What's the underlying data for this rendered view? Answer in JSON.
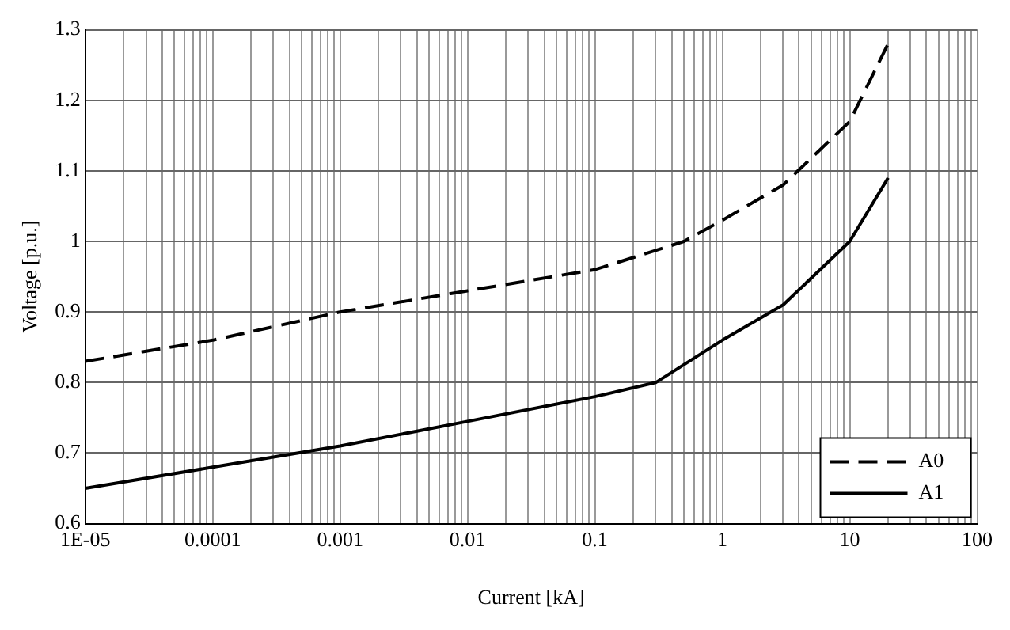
{
  "chart_data": {
    "type": "line",
    "xlabel": "Current [kA]",
    "ylabel": "Voltage [p.u.]",
    "log": "x",
    "grid": true,
    "legend": "bottom right",
    "marker": "none",
    "xlim": [
      1e-05,
      100
    ],
    "ylim": [
      0.6,
      1.3
    ],
    "xticks": [
      {
        "value": 1e-05,
        "label": "1E-05"
      },
      {
        "value": 2e-05,
        "label": null
      },
      {
        "value": 3e-05,
        "label": null
      },
      {
        "value": 4e-05,
        "label": null
      },
      {
        "value": 5e-05,
        "label": null
      },
      {
        "value": 6e-05,
        "label": null
      },
      {
        "value": 7e-05,
        "label": null
      },
      {
        "value": 8e-05,
        "label": null
      },
      {
        "value": 9e-05,
        "label": null
      },
      {
        "value": 0.0001,
        "label": "0.0001"
      },
      {
        "value": 0.0002,
        "label": null
      },
      {
        "value": 0.0003,
        "label": null
      },
      {
        "value": 0.0004,
        "label": null
      },
      {
        "value": 0.0005,
        "label": null
      },
      {
        "value": 0.0006,
        "label": null
      },
      {
        "value": 0.0007,
        "label": null
      },
      {
        "value": 0.0008,
        "label": null
      },
      {
        "value": 0.0009,
        "label": null
      },
      {
        "value": 0.001,
        "label": "0.001"
      },
      {
        "value": 0.002,
        "label": null
      },
      {
        "value": 0.003,
        "label": null
      },
      {
        "value": 0.004,
        "label": null
      },
      {
        "value": 0.005,
        "label": null
      },
      {
        "value": 0.006,
        "label": null
      },
      {
        "value": 0.007,
        "label": null
      },
      {
        "value": 0.008,
        "label": null
      },
      {
        "value": 0.009,
        "label": null
      },
      {
        "value": 0.01,
        "label": "0.01"
      },
      {
        "value": 0.02,
        "label": null
      },
      {
        "value": 0.03,
        "label": null
      },
      {
        "value": 0.04,
        "label": null
      },
      {
        "value": 0.05,
        "label": null
      },
      {
        "value": 0.06,
        "label": null
      },
      {
        "value": 0.07,
        "label": null
      },
      {
        "value": 0.08,
        "label": null
      },
      {
        "value": 0.09,
        "label": null
      },
      {
        "value": 0.1,
        "label": "0.1"
      },
      {
        "value": 0.2,
        "label": null
      },
      {
        "value": 0.3,
        "label": null
      },
      {
        "value": 0.4,
        "label": null
      },
      {
        "value": 0.5,
        "label": null
      },
      {
        "value": 0.6,
        "label": null
      },
      {
        "value": 0.7,
        "label": null
      },
      {
        "value": 0.8,
        "label": null
      },
      {
        "value": 0.9,
        "label": null
      },
      {
        "value": 1,
        "label": "1"
      },
      {
        "value": 2,
        "label": null
      },
      {
        "value": 3,
        "label": null
      },
      {
        "value": 4,
        "label": null
      },
      {
        "value": 5,
        "label": null
      },
      {
        "value": 6,
        "label": null
      },
      {
        "value": 7,
        "label": null
      },
      {
        "value": 8,
        "label": null
      },
      {
        "value": 9,
        "label": null
      },
      {
        "value": 10,
        "label": "10"
      },
      {
        "value": 20,
        "label": null
      },
      {
        "value": 30,
        "label": null
      },
      {
        "value": 40,
        "label": null
      },
      {
        "value": 50,
        "label": null
      },
      {
        "value": 60,
        "label": null
      },
      {
        "value": 70,
        "label": null
      },
      {
        "value": 80,
        "label": null
      },
      {
        "value": 90,
        "label": null
      },
      {
        "value": 100,
        "label": "100"
      }
    ],
    "yticks": [
      0.6,
      0.7,
      0.8,
      0.9,
      1,
      1.1,
      1.2,
      1.3
    ],
    "series": [
      {
        "name": "A0",
        "color": "#000000",
        "line_style": "dashed",
        "x": [
          1e-05,
          0.0001,
          0.001,
          0.01,
          0.1,
          0.5,
          1,
          3,
          10,
          20
        ],
        "values": [
          0.83,
          0.86,
          0.9,
          0.93,
          0.96,
          1.0,
          1.03,
          1.08,
          1.17,
          1.28
        ]
      },
      {
        "name": "A1",
        "color": "#000000",
        "line_style": "solid",
        "x": [
          1e-05,
          0.0001,
          0.001,
          0.01,
          0.1,
          0.3,
          1,
          3,
          10,
          20
        ],
        "values": [
          0.65,
          0.68,
          0.71,
          0.745,
          0.78,
          0.8,
          0.86,
          0.91,
          1.0,
          1.09
        ]
      }
    ]
  }
}
